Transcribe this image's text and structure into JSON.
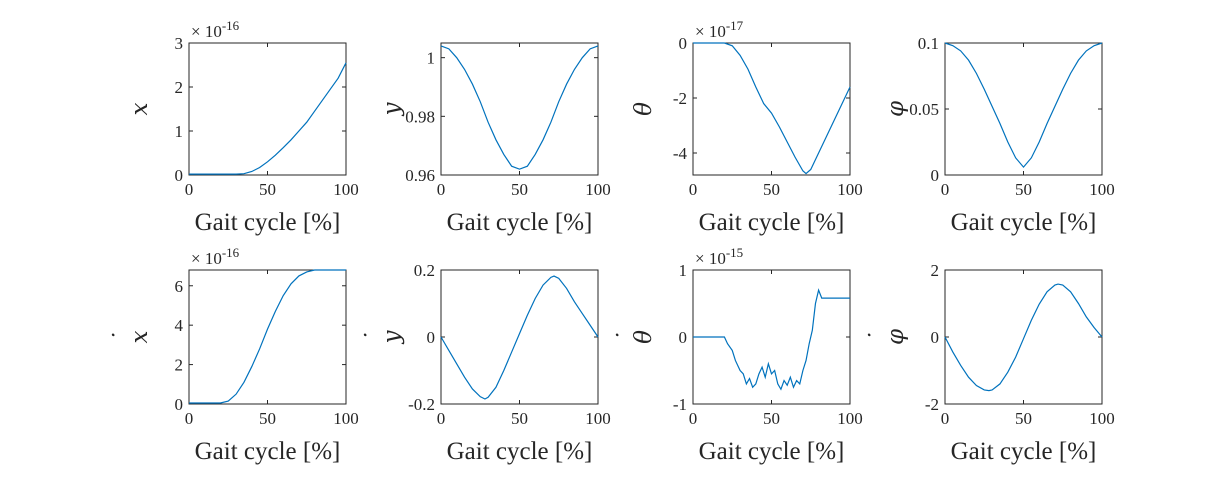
{
  "colors": {
    "series": "#0072BD",
    "axis": "#262626"
  },
  "chart_data": [
    {
      "type": "line",
      "ylabel": "x",
      "ylabel_dot": false,
      "xlabel": "Gait cycle [%]",
      "exponent": "-16",
      "xlim": [
        0,
        100
      ],
      "ylim": [
        0,
        3
      ],
      "xticks": [
        0,
        50,
        100
      ],
      "xtick_labels": [
        "0",
        "50",
        "100"
      ],
      "yticks": [
        0,
        1,
        2,
        3
      ],
      "ytick_labels": [
        "0",
        "1",
        "2",
        "3"
      ],
      "x": [
        0,
        10,
        20,
        30,
        35,
        40,
        45,
        50,
        55,
        60,
        65,
        70,
        75,
        80,
        85,
        90,
        95,
        100
      ],
      "values": [
        0.02,
        0.02,
        0.02,
        0.02,
        0.03,
        0.08,
        0.17,
        0.3,
        0.45,
        0.62,
        0.8,
        1.0,
        1.2,
        1.45,
        1.7,
        1.95,
        2.2,
        2.55
      ]
    },
    {
      "type": "line",
      "ylabel": "y",
      "ylabel_dot": false,
      "xlabel": "Gait cycle [%]",
      "exponent": "",
      "xlim": [
        0,
        100
      ],
      "ylim": [
        0.96,
        1.005
      ],
      "xticks": [
        0,
        50,
        100
      ],
      "xtick_labels": [
        "0",
        "50",
        "100"
      ],
      "yticks": [
        0.96,
        0.98,
        1.0
      ],
      "ytick_labels": [
        "0.96",
        "0.98",
        "1"
      ],
      "x": [
        0,
        5,
        10,
        15,
        20,
        25,
        30,
        35,
        40,
        45,
        50,
        55,
        60,
        65,
        70,
        75,
        80,
        85,
        90,
        95,
        100
      ],
      "values": [
        1.004,
        1.003,
        1.0,
        0.996,
        0.991,
        0.985,
        0.978,
        0.972,
        0.967,
        0.963,
        0.962,
        0.963,
        0.967,
        0.972,
        0.978,
        0.985,
        0.991,
        0.996,
        1.0,
        1.003,
        1.004
      ]
    },
    {
      "type": "line",
      "ylabel": "θ",
      "ylabel_dot": false,
      "xlabel": "Gait cycle [%]",
      "exponent": "-17",
      "xlim": [
        0,
        100
      ],
      "ylim": [
        -4.8,
        0
      ],
      "xticks": [
        0,
        50,
        100
      ],
      "xtick_labels": [
        "0",
        "50",
        "100"
      ],
      "yticks": [
        -4,
        -2,
        0
      ],
      "ytick_labels": [
        "-4",
        "-2",
        "0"
      ],
      "x": [
        0,
        10,
        20,
        25,
        30,
        35,
        40,
        45,
        50,
        55,
        60,
        65,
        70,
        72,
        75,
        80,
        85,
        90,
        95,
        100
      ],
      "values": [
        0,
        0,
        0,
        -0.1,
        -0.45,
        -0.95,
        -1.6,
        -2.2,
        -2.55,
        -3.05,
        -3.6,
        -4.15,
        -4.65,
        -4.75,
        -4.6,
        -4.0,
        -3.4,
        -2.8,
        -2.2,
        -1.6
      ]
    },
    {
      "type": "line",
      "ylabel": "φ",
      "ylabel_dot": false,
      "xlabel": "Gait cycle [%]",
      "exponent": "",
      "xlim": [
        0,
        100
      ],
      "ylim": [
        0,
        0.1
      ],
      "xticks": [
        0,
        50,
        100
      ],
      "xtick_labels": [
        "0",
        "50",
        "100"
      ],
      "yticks": [
        0,
        0.05,
        0.1
      ],
      "ytick_labels": [
        "0",
        "0.05",
        "0.1"
      ],
      "x": [
        0,
        5,
        10,
        15,
        20,
        25,
        30,
        35,
        40,
        45,
        50,
        55,
        60,
        65,
        70,
        75,
        80,
        85,
        90,
        95,
        100
      ],
      "values": [
        0.1,
        0.098,
        0.094,
        0.087,
        0.077,
        0.065,
        0.052,
        0.039,
        0.025,
        0.013,
        0.006,
        0.013,
        0.025,
        0.039,
        0.052,
        0.065,
        0.077,
        0.087,
        0.094,
        0.098,
        0.1
      ]
    },
    {
      "type": "line",
      "ylabel": "x",
      "ylabel_dot": true,
      "xlabel": "Gait cycle [%]",
      "exponent": "-16",
      "xlim": [
        0,
        100
      ],
      "ylim": [
        0,
        6.8
      ],
      "xticks": [
        0,
        50,
        100
      ],
      "xtick_labels": [
        "0",
        "50",
        "100"
      ],
      "yticks": [
        0,
        2,
        4,
        6
      ],
      "ytick_labels": [
        "0",
        "2",
        "4",
        "6"
      ],
      "x": [
        0,
        10,
        20,
        25,
        30,
        35,
        40,
        45,
        50,
        55,
        60,
        65,
        70,
        75,
        80,
        90,
        100
      ],
      "values": [
        0.05,
        0.05,
        0.05,
        0.15,
        0.5,
        1.1,
        1.9,
        2.8,
        3.8,
        4.7,
        5.5,
        6.1,
        6.5,
        6.7,
        6.8,
        6.8,
        6.8
      ]
    },
    {
      "type": "line",
      "ylabel": "y",
      "ylabel_dot": true,
      "xlabel": "Gait cycle [%]",
      "exponent": "",
      "xlim": [
        0,
        100
      ],
      "ylim": [
        -0.2,
        0.2
      ],
      "xticks": [
        0,
        50,
        100
      ],
      "xtick_labels": [
        "0",
        "50",
        "100"
      ],
      "yticks": [
        -0.2,
        0,
        0.2
      ],
      "ytick_labels": [
        "-0.2",
        "0",
        "0.2"
      ],
      "x": [
        0,
        5,
        10,
        15,
        20,
        25,
        28,
        30,
        35,
        40,
        45,
        50,
        55,
        60,
        65,
        70,
        72,
        75,
        80,
        85,
        90,
        95,
        100
      ],
      "values": [
        0,
        -0.04,
        -0.08,
        -0.12,
        -0.155,
        -0.178,
        -0.185,
        -0.18,
        -0.15,
        -0.1,
        -0.045,
        0.01,
        0.065,
        0.115,
        0.155,
        0.178,
        0.182,
        0.175,
        0.145,
        0.105,
        0.07,
        0.035,
        0
      ]
    },
    {
      "type": "line",
      "ylabel": "θ",
      "ylabel_dot": true,
      "xlabel": "Gait cycle [%]",
      "exponent": "-15",
      "xlim": [
        0,
        100
      ],
      "ylim": [
        -1,
        1
      ],
      "xticks": [
        0,
        50,
        100
      ],
      "xtick_labels": [
        "0",
        "50",
        "100"
      ],
      "yticks": [
        -1,
        0,
        1
      ],
      "ytick_labels": [
        "-1",
        "0",
        "1"
      ],
      "x": [
        0,
        20,
        22,
        25,
        27,
        30,
        32,
        34,
        36,
        38,
        40,
        42,
        44,
        46,
        48,
        50,
        52,
        54,
        56,
        58,
        60,
        62,
        64,
        66,
        68,
        70,
        72,
        74,
        76,
        78,
        80,
        82,
        85,
        90,
        100
      ],
      "values": [
        0,
        0,
        -0.1,
        -0.2,
        -0.35,
        -0.5,
        -0.55,
        -0.7,
        -0.62,
        -0.75,
        -0.7,
        -0.55,
        -0.45,
        -0.6,
        -0.4,
        -0.55,
        -0.5,
        -0.7,
        -0.78,
        -0.65,
        -0.72,
        -0.6,
        -0.75,
        -0.65,
        -0.7,
        -0.5,
        -0.35,
        -0.1,
        0.1,
        0.5,
        0.7,
        0.58,
        0.58,
        0.58,
        0.58
      ]
    },
    {
      "type": "line",
      "ylabel": "φ",
      "ylabel_dot": true,
      "xlabel": "Gait cycle [%]",
      "exponent": "",
      "xlim": [
        0,
        100
      ],
      "ylim": [
        -2,
        2
      ],
      "xticks": [
        0,
        50,
        100
      ],
      "xtick_labels": [
        "0",
        "50",
        "100"
      ],
      "yticks": [
        -2,
        0,
        2
      ],
      "ytick_labels": [
        "-2",
        "0",
        "2"
      ],
      "x": [
        0,
        5,
        10,
        15,
        20,
        25,
        28,
        30,
        35,
        40,
        45,
        50,
        55,
        60,
        65,
        70,
        72,
        75,
        80,
        85,
        90,
        95,
        100
      ],
      "values": [
        0,
        -0.45,
        -0.85,
        -1.2,
        -1.45,
        -1.58,
        -1.6,
        -1.58,
        -1.4,
        -1.05,
        -0.6,
        -0.05,
        0.5,
        0.98,
        1.35,
        1.55,
        1.58,
        1.55,
        1.35,
        1.0,
        0.6,
        0.28,
        0
      ]
    }
  ]
}
